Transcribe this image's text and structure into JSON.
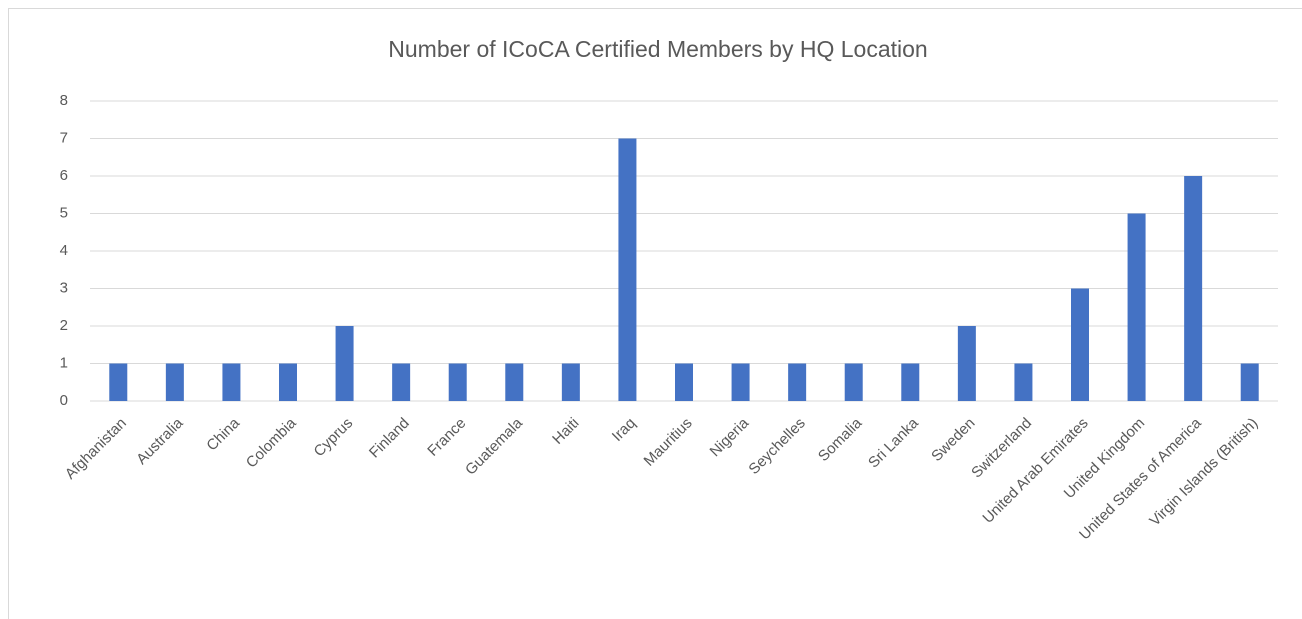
{
  "chart_data": {
    "type": "bar",
    "title": "Number of ICoCA Certified Members by HQ Location",
    "categories": [
      "Afghanistan",
      "Australia",
      "China",
      "Colombia",
      "Cyprus",
      "Finland",
      "France",
      "Guatemala",
      "Haiti",
      "Iraq",
      "Mauritius",
      "Nigeria",
      "Seychelles",
      "Somalia",
      "Sri Lanka",
      "Sweden",
      "Switzerland",
      "United Arab Emirates",
      "United Kingdom",
      "United States of America",
      "Virgin Islands (British)"
    ],
    "values": [
      1,
      1,
      1,
      1,
      2,
      1,
      1,
      1,
      1,
      7,
      1,
      1,
      1,
      1,
      1,
      2,
      1,
      3,
      5,
      6,
      1
    ],
    "color": "#4472c4",
    "ylim": [
      0,
      8
    ],
    "yticks": [
      0,
      1,
      2,
      3,
      4,
      5,
      6,
      7,
      8
    ],
    "grid": true
  }
}
